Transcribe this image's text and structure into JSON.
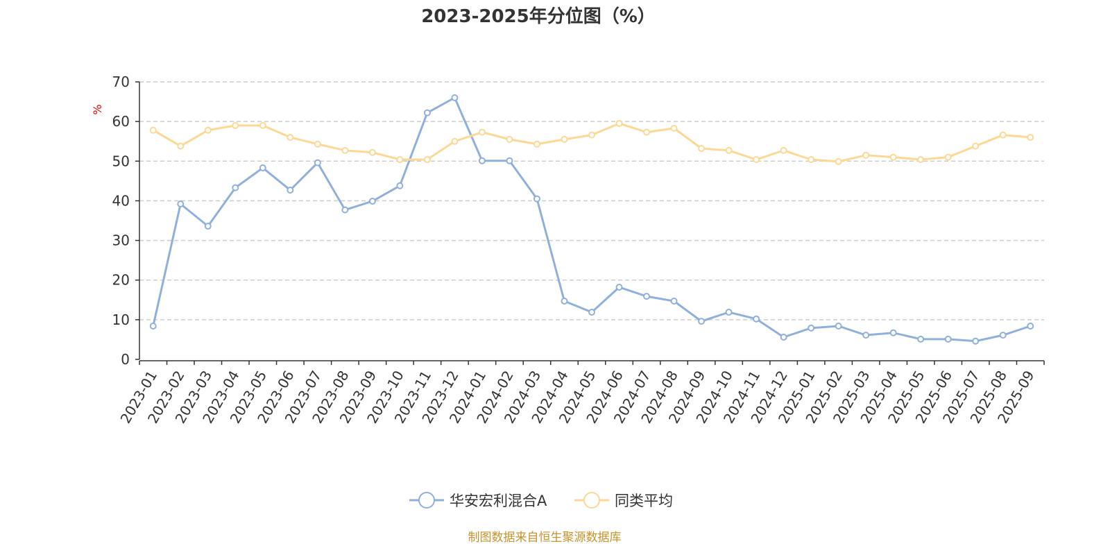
{
  "chart_data": {
    "type": "line",
    "title": "2023-2025年分位图（%）",
    "ylabel": "%",
    "xlabel": "",
    "ylim": [
      0,
      70
    ],
    "yticks": [
      0,
      10,
      20,
      30,
      40,
      50,
      60,
      70
    ],
    "grid": true,
    "legend_position": "bottom-center",
    "categories": [
      "2023-01",
      "2023-02",
      "2023-03",
      "2023-04",
      "2023-05",
      "2023-06",
      "2023-07",
      "2023-08",
      "2023-09",
      "2023-10",
      "2023-11",
      "2023-12",
      "2024-01",
      "2024-02",
      "2024-03",
      "2024-04",
      "2024-05",
      "2024-06",
      "2024-07",
      "2024-08",
      "2024-09",
      "2024-10",
      "2024-11",
      "2024-12",
      "2025-01",
      "2025-02",
      "2025-03",
      "2025-04",
      "2025-05",
      "2025-06",
      "2025-07",
      "2025-08",
      "2025-09"
    ],
    "series": [
      {
        "name": "华安宏利混合A",
        "color": "#8fb0dc",
        "values": [
          8.4,
          39.2,
          33.6,
          43.3,
          48.3,
          42.7,
          49.6,
          37.7,
          39.9,
          43.8,
          62.2,
          66.0,
          50.1,
          50.1,
          40.5,
          14.7,
          11.9,
          18.2,
          15.9,
          14.7,
          9.6,
          11.9,
          10.2,
          5.6,
          7.9,
          8.4,
          6.1,
          6.7,
          5.1,
          5.1,
          4.6,
          6.1,
          8.4
        ]
      },
      {
        "name": "同类平均",
        "color": "#fdd895",
        "values": [
          57.8,
          53.8,
          57.8,
          59.0,
          59.0,
          56.0,
          54.3,
          52.7,
          52.2,
          50.4,
          50.4,
          55.0,
          57.3,
          55.5,
          54.3,
          55.5,
          56.6,
          59.5,
          57.3,
          58.3,
          53.2,
          52.7,
          50.4,
          52.7,
          50.4,
          49.9,
          51.5,
          51.0,
          50.4,
          51.0,
          53.8,
          56.6,
          56.0
        ]
      }
    ]
  },
  "footer": "制图数据来自恒生聚源数据库"
}
